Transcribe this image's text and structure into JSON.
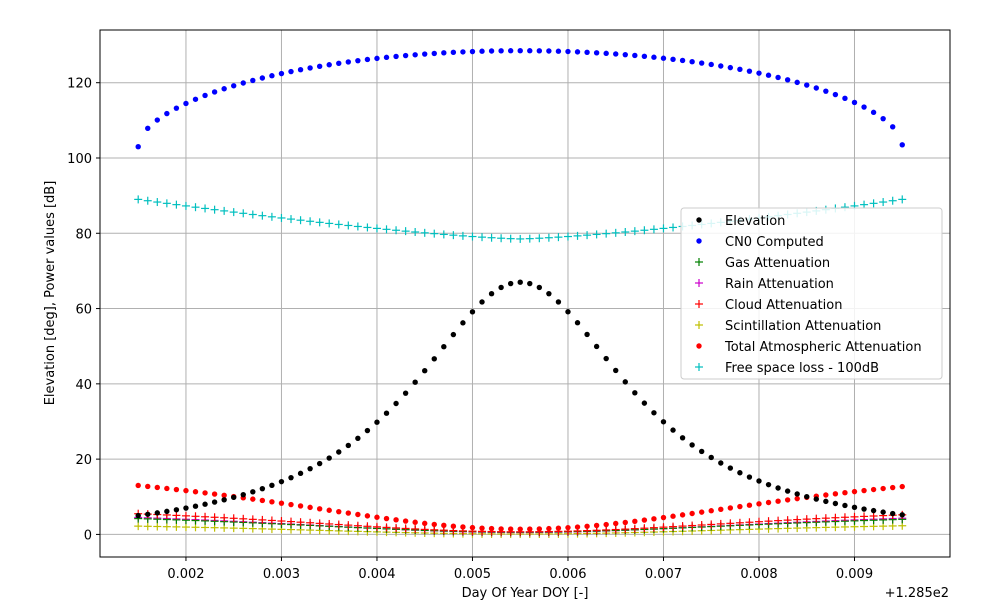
{
  "chart_data": {
    "type": "scatter",
    "title": "",
    "xlabel": "Day Of Year DOY [-]",
    "ylabel": "Elevation [deg], Power values [dB]",
    "x_offset_label": "+1.285e2",
    "xlim": [
      0.0011,
      0.01
    ],
    "ylim": [
      -6,
      134
    ],
    "x_ticks": [
      0.002,
      0.003,
      0.004,
      0.005,
      0.006,
      0.007,
      0.008,
      0.009
    ],
    "x_tick_labels": [
      "0.002",
      "0.003",
      "0.004",
      "0.005",
      "0.006",
      "0.007",
      "0.008",
      "0.009"
    ],
    "y_ticks": [
      0,
      20,
      40,
      60,
      80,
      100,
      120
    ],
    "y_tick_labels": [
      "0",
      "20",
      "40",
      "60",
      "80",
      "100",
      "120"
    ],
    "grid": true,
    "legend_position": "center-right",
    "x_start": 0.0015,
    "x_end": 0.0095,
    "x_peak": 0.0055,
    "num_points": 81,
    "series": [
      {
        "name": "Elevation",
        "marker": "dot",
        "color": "#000000",
        "shape": "peak",
        "start": 5,
        "peak": 67,
        "end": 5.2,
        "width": 0.0014
      },
      {
        "name": "CN0 Computed",
        "marker": "dot",
        "color": "#0000ff",
        "shape": "arch",
        "start": 103,
        "peak": 128.5,
        "end": 103.5,
        "width": 0.004
      },
      {
        "name": "Gas Attenuation",
        "marker": "plus",
        "color": "#008000",
        "shape": "valley",
        "start": 4.2,
        "min": 0.6,
        "end": 4.0,
        "width": 0.0014
      },
      {
        "name": "Rain Attenuation",
        "marker": "plus",
        "color": "#cc00cc",
        "shape": "valley",
        "start": 4.5,
        "min": 0.5,
        "end": 4.3,
        "width": 0.0014
      },
      {
        "name": "Cloud Attenuation",
        "marker": "plus",
        "color": "#ff0000",
        "shape": "valley",
        "start": 5.5,
        "min": 0.7,
        "end": 5.2,
        "width": 0.0014
      },
      {
        "name": "Scintillation Attenuation",
        "marker": "plus",
        "color": "#bfbf00",
        "shape": "valley",
        "start": 2.2,
        "min": 0.1,
        "end": 2.3,
        "width": 0.0014
      },
      {
        "name": "Total Atmospheric Attenuation",
        "marker": "dot",
        "color": "#ff0000",
        "shape": "valley",
        "start": 13,
        "min": 1.4,
        "end": 12.7,
        "width": 0.0014
      },
      {
        "name": "Free space loss - 100dB",
        "marker": "plus",
        "color": "#00bfbf",
        "shape": "valley_lin",
        "start": 89,
        "min": 78.5,
        "end": 89,
        "width": 0.004
      }
    ]
  }
}
